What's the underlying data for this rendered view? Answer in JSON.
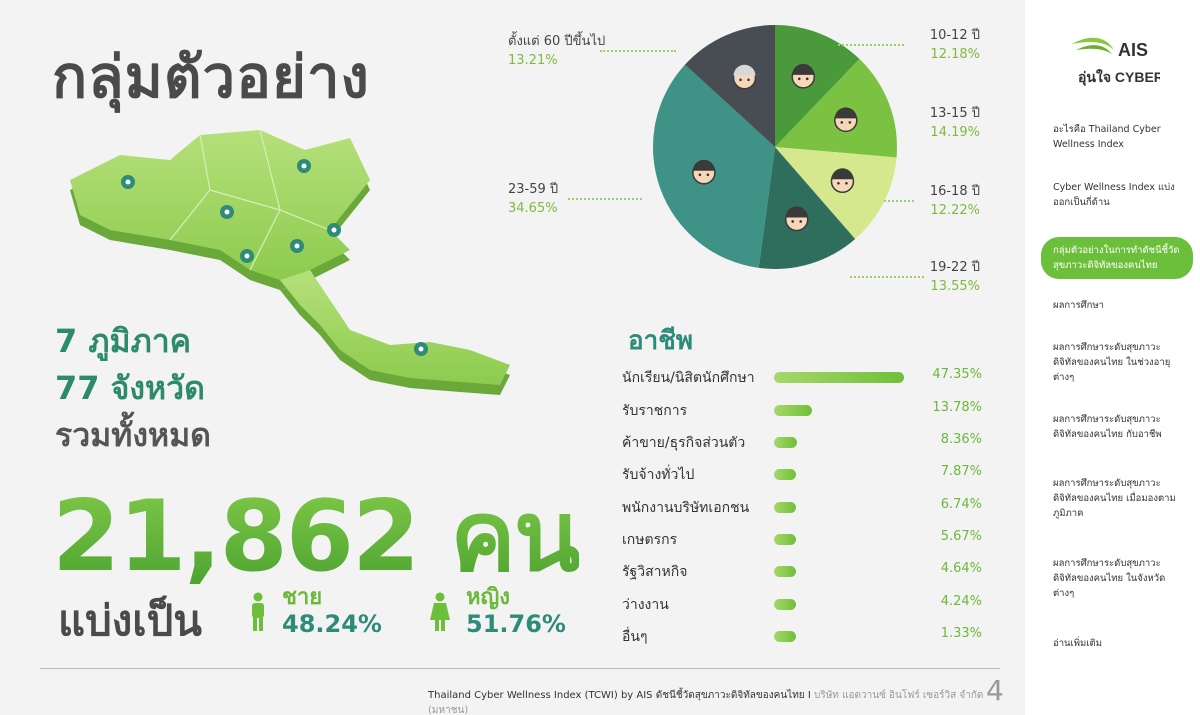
{
  "title": "กลุ่มตัวอย่าง",
  "regions_label": "7 ภูมิภาค",
  "provinces_label": "77 จังหวัด",
  "total_label": "รวมทั้งหมด",
  "total_value": "21,862 คน",
  "split_label": "แบ่งเป็น",
  "gender": {
    "male_label": "ชาย",
    "male_pct": "48.24%",
    "female_label": "หญิง",
    "female_pct": "51.76%"
  },
  "colors": {
    "accent_green": "#6cbf3a",
    "teal": "#2e8b7a"
  },
  "chart_data": [
    {
      "type": "pie",
      "title": "",
      "slices": [
        {
          "label": "10-12 ปี",
          "value": 12.18,
          "display": "12.18%",
          "color": "#4a9a3c"
        },
        {
          "label": "13-15 ปี",
          "value": 14.19,
          "display": "14.19%",
          "color": "#7cc242"
        },
        {
          "label": "16-18 ปี",
          "value": 12.22,
          "display": "12.22%",
          "color": "#d6e88e"
        },
        {
          "label": "19-22 ปี",
          "value": 13.55,
          "display": "13.55%",
          "color": "#2f6e5c"
        },
        {
          "label": "23-59 ปี",
          "value": 34.65,
          "display": "34.65%",
          "color": "#3f9286"
        },
        {
          "label": "ตั้งแต่ 60 ปีขึ้นไป",
          "value": 13.21,
          "display": "13.21%",
          "color": "#474d52"
        }
      ]
    },
    {
      "type": "bar",
      "title": "อาชีพ",
      "categories": [
        "นักเรียน/นิสิตนักศึกษา",
        "รับราชการ",
        "ค้าขาย/ธุรกิจส่วนตัว",
        "รับจ้างทั่วไป",
        "พนักงานบริษัทเอกชน",
        "เกษตรกร",
        "รัฐวิสาหกิจ",
        "ว่างงาน",
        "อื่นๆ"
      ],
      "values": [
        47.35,
        13.78,
        8.36,
        7.87,
        6.74,
        5.67,
        4.64,
        4.24,
        1.33
      ],
      "display": [
        "47.35%",
        "13.78%",
        "8.36%",
        "7.87%",
        "6.74%",
        "5.67%",
        "4.64%",
        "4.24%",
        "1.33%"
      ]
    }
  ],
  "footer": {
    "main": "Thailand Cyber Wellness Index (TCWI) by AIS ดัชนีชี้วัดสุขภาวะดิจิทัลของคนไทย I",
    "company": "บริษัท แอดวานซ์ อินโฟร์ เซอร์วิส จำกัด (มหาชน)",
    "page": "4"
  },
  "logo": {
    "brand": "AIS",
    "tagline": "อุ่นใจ CYBER"
  },
  "sidebar": {
    "items": [
      {
        "label": "อะไรคือ Thailand Cyber Wellness Index",
        "active": false
      },
      {
        "label": "Cyber Wellness Index แบ่งออกเป็นกี่ด้าน",
        "active": false
      },
      {
        "label": "กลุ่มตัวอย่างในการทำดัชนีชี้วัดสุขภาวะดิจิทัลของคนไทย",
        "active": true
      },
      {
        "label": "ผลการศึกษา",
        "active": false
      },
      {
        "label": "ผลการศึกษาระดับสุขภาวะดิจิทัลของคนไทย ในช่วงอายุต่างๆ",
        "active": false
      },
      {
        "label": "ผลการศึกษาระดับสุขภาวะดิจิทัลของคนไทย กับอาชีพ",
        "active": false
      },
      {
        "label": "ผลการศึกษาระดับสุขภาวะดิจิทัลของคนไทย เมื่อมองตามภูมิภาค",
        "active": false
      },
      {
        "label": "ผลการศึกษาระดับสุขภาวะดิจิทัลของคนไทย ในจังหวัดต่างๆ",
        "active": false
      },
      {
        "label": "อ่านเพิ่มเติม",
        "active": false
      }
    ]
  }
}
